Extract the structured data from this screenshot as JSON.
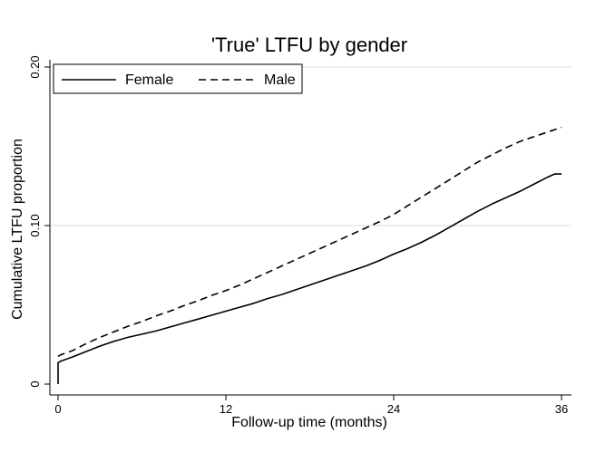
{
  "chart_data": {
    "type": "line",
    "title": "'True' LTFU by gender",
    "xlabel": "Follow-up time (months)",
    "ylabel": "Cumulative LTFU proportion",
    "xlim": [
      0,
      36
    ],
    "ylim": [
      0,
      0.2
    ],
    "x_ticks": [
      0,
      12,
      24,
      36
    ],
    "x_tick_labels": [
      "0",
      "12",
      "24",
      "36"
    ],
    "y_ticks": [
      0,
      0.1,
      0.2
    ],
    "y_tick_labels": [
      "0",
      "0.10",
      "0.20"
    ],
    "grid": "horizontal",
    "legend_position": "top-left",
    "series": [
      {
        "name": "Female",
        "line_style": "solid",
        "color": "#000000",
        "x": [
          0,
          0,
          0.2,
          1,
          2,
          3,
          4,
          5,
          6,
          7,
          8,
          9,
          10,
          11,
          12,
          13,
          14,
          15,
          16,
          17,
          18,
          19,
          20,
          21,
          22,
          23,
          24,
          25,
          26,
          27,
          28,
          29,
          30,
          31,
          32,
          33,
          34,
          35,
          35.5,
          36
        ],
        "y": [
          0,
          0.0135,
          0.0145,
          0.017,
          0.0205,
          0.024,
          0.027,
          0.0295,
          0.0315,
          0.0335,
          0.036,
          0.0385,
          0.041,
          0.0435,
          0.046,
          0.0485,
          0.051,
          0.054,
          0.0565,
          0.0595,
          0.0625,
          0.0655,
          0.0685,
          0.0715,
          0.0745,
          0.078,
          0.082,
          0.0855,
          0.0895,
          0.094,
          0.099,
          0.104,
          0.109,
          0.1135,
          0.1175,
          0.1215,
          0.126,
          0.1305,
          0.1325,
          0.1325
        ]
      },
      {
        "name": "Male",
        "line_style": "dashed",
        "color": "#000000",
        "x": [
          0,
          0.2,
          1,
          2,
          3,
          4,
          5,
          6,
          7,
          8,
          9,
          10,
          11,
          12,
          13,
          14,
          15,
          16,
          17,
          18,
          19,
          20,
          21,
          22,
          23,
          24,
          25,
          26,
          27,
          28,
          29,
          30,
          31,
          32,
          33,
          34,
          35,
          36
        ],
        "y": [
          0.0175,
          0.0185,
          0.021,
          0.0255,
          0.0295,
          0.033,
          0.0365,
          0.0395,
          0.043,
          0.046,
          0.0495,
          0.0525,
          0.056,
          0.059,
          0.0625,
          0.0665,
          0.0705,
          0.0745,
          0.0785,
          0.0825,
          0.0865,
          0.0905,
          0.0945,
          0.0985,
          0.1025,
          0.107,
          0.1125,
          0.118,
          0.1235,
          0.129,
          0.1345,
          0.14,
          0.1445,
          0.149,
          0.153,
          0.156,
          0.159,
          0.162
        ]
      }
    ]
  }
}
